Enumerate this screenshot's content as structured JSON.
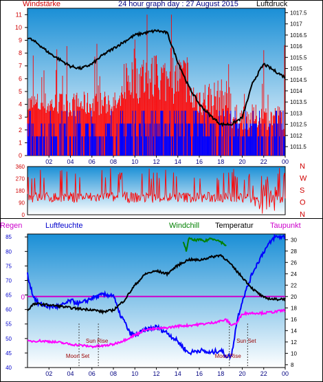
{
  "header": {
    "left_title": "Windstärke",
    "center_title": "24 hour graph day : 27 August 2015",
    "right_title": "Luftdruck"
  },
  "colors": {
    "plot_top": "#1a8fd6",
    "plot_bottom": "#ffffff",
    "wind_gust": "#ff0000",
    "wind_speed": "#0000ff",
    "pressure": "#000000",
    "wind_dir": "#ff0000",
    "humidity": "#0000ff",
    "temperature": "#000000",
    "dewpoint": "#ff00ff",
    "windchill": "#008000",
    "zero_line": "#cc00cc",
    "moon_sun_text": "#990000"
  },
  "chart_data": [
    {
      "type": "bar",
      "name": "wind",
      "left_axis_label": "Windstärke",
      "right_axis_label": "Luftdruck",
      "x_ticks": [
        "02",
        "04",
        "06",
        "08",
        "10",
        "12",
        "14",
        "16",
        "18",
        "20",
        "22",
        "00"
      ],
      "y_left_ticks": [
        "0",
        "1",
        "2",
        "3",
        "4",
        "5",
        "6",
        "7",
        "8",
        "9",
        "10",
        "11"
      ],
      "y_left_range": [
        0,
        11.5
      ],
      "y_right_ticks": [
        "1011.5",
        "1012",
        "1012.5",
        "1013",
        "1013.5",
        "1014",
        "1014.5",
        "1015",
        "1015.5",
        "1016",
        "1016.5",
        "1017",
        "1017.5"
      ],
      "y_right_range": [
        1011.1,
        1017.7
      ],
      "pressure_series": {
        "hours": [
          0,
          1,
          2,
          3,
          4,
          5,
          6,
          7,
          8,
          9,
          10,
          11,
          12,
          13,
          14,
          15,
          16,
          17,
          18,
          19,
          20,
          21,
          22,
          23,
          24
        ],
        "values": [
          1016.4,
          1016.1,
          1015.7,
          1015.4,
          1015.1,
          1015.0,
          1015.2,
          1015.6,
          1015.9,
          1016.2,
          1016.5,
          1016.6,
          1016.7,
          1016.6,
          1015.3,
          1014.2,
          1013.4,
          1012.9,
          1012.5,
          1012.5,
          1012.8,
          1014.4,
          1015.2,
          1014.9,
          1014.6
        ]
      },
      "wind_speed_max": 3,
      "wind_gust_max": 11
    },
    {
      "type": "scatter",
      "name": "wind direction",
      "y_left_ticks": [
        "0",
        "90",
        "180",
        "270",
        "360"
      ],
      "y_right_ticks": [
        "N",
        "W",
        "S",
        "O",
        "N"
      ],
      "y_range": [
        0,
        360
      ],
      "x_ticks": [
        "02",
        "04",
        "06",
        "08",
        "10",
        "12",
        "14",
        "16",
        "18",
        "20",
        "22",
        "00"
      ]
    },
    {
      "type": "line",
      "name": "temperature humidity",
      "legend": [
        "Regen",
        "Luftfeuchte",
        "Windchill",
        "Temperatur",
        "Taupunkt"
      ],
      "y_left_ticks": [
        "40",
        "45",
        "50",
        "55",
        "60",
        "65",
        "70",
        "75",
        "80",
        "85"
      ],
      "y_left_range": [
        40,
        86
      ],
      "zero_label": "0",
      "y_right_ticks": [
        "8",
        "10",
        "12",
        "14",
        "16",
        "18",
        "20",
        "22",
        "24",
        "26",
        "28",
        "30"
      ],
      "y_right_range": [
        7.5,
        31
      ],
      "x_ticks": [
        "02",
        "04",
        "06",
        "08",
        "10",
        "12",
        "14",
        "16",
        "18",
        "20",
        "22",
        "00"
      ],
      "series": [
        {
          "name": "Luftfeuchte",
          "hours": [
            0,
            0.5,
            1,
            2,
            3,
            4,
            5,
            6,
            7,
            8,
            8.5,
            9,
            9.5,
            10,
            11,
            12,
            13,
            14,
            15,
            16,
            17,
            18,
            18.5,
            19,
            19.5,
            20,
            21,
            22,
            23,
            24
          ],
          "values": [
            72,
            65,
            62,
            61,
            61,
            63,
            62,
            64,
            65,
            65,
            59,
            56,
            52,
            51,
            53,
            54,
            52,
            49,
            45,
            46,
            45,
            46,
            44,
            44,
            56,
            63,
            73,
            80,
            85,
            85
          ]
        },
        {
          "name": "Temperatur",
          "hours": [
            0,
            0.5,
            1,
            2,
            3,
            4,
            5,
            6,
            7,
            8,
            9,
            10,
            11,
            12,
            13,
            14,
            15,
            16,
            17,
            18,
            18.5,
            19,
            20,
            21,
            22,
            23,
            24
          ],
          "values": [
            17.5,
            18.6,
            18.7,
            18.5,
            18.3,
            18.0,
            17.8,
            17.7,
            17.3,
            17.6,
            19.3,
            22.0,
            24.0,
            24.5,
            24.0,
            25.5,
            26.5,
            26.4,
            26.9,
            27.3,
            26.5,
            25.5,
            23.4,
            21.3,
            19.8,
            19.5,
            19.6
          ]
        },
        {
          "name": "Taupunkt",
          "hours": [
            0,
            1,
            2,
            3,
            4,
            5,
            6,
            7,
            8,
            9,
            10,
            11,
            12,
            13,
            14,
            15,
            16,
            17,
            18,
            18.5,
            19,
            19.5,
            20,
            21,
            22,
            23,
            24
          ],
          "values": [
            12.1,
            12.2,
            12.1,
            11.9,
            11.6,
            11.4,
            11.2,
            11.3,
            11.6,
            12.3,
            13.2,
            14.2,
            14.3,
            14.5,
            14.8,
            14.9,
            15.1,
            15.3,
            15.7,
            15.9,
            15.0,
            15.3,
            17.0,
            17.1,
            17.1,
            17.3,
            17.6
          ]
        },
        {
          "name": "Windchill",
          "hours": [
            14.5,
            14.8,
            15.0,
            15.5,
            16.0,
            16.5,
            17.0,
            17.5,
            18.0,
            18.5
          ],
          "values": [
            29.5,
            28.0,
            30.2,
            29.9,
            30.0,
            29.7,
            30.2,
            30.1,
            29.6,
            29.0
          ]
        }
      ],
      "annotations": [
        {
          "text": "Moon Set",
          "hour": 4.8
        },
        {
          "text": "Sun Rise",
          "hour": 6.6
        },
        {
          "text": "Moon Rise",
          "hour": 18.8
        },
        {
          "text": "Sun Set",
          "hour": 20.5
        }
      ]
    }
  ]
}
